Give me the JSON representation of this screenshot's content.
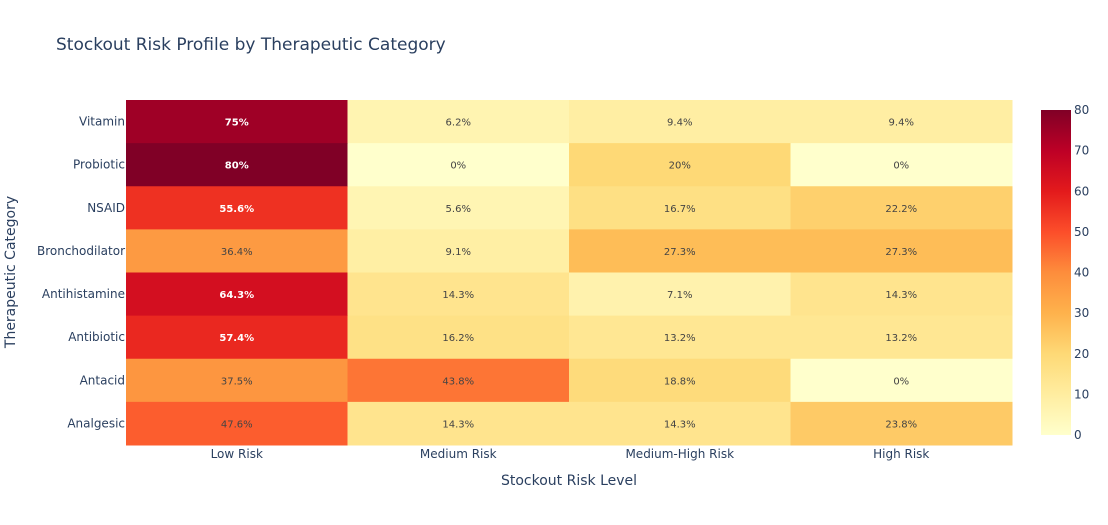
{
  "chart_data": {
    "type": "heatmap",
    "title": "Stockout Risk Profile by Therapeutic Category",
    "xlabel": "Stockout Risk Level",
    "ylabel": "Therapeutic Category",
    "x_categories": [
      "Low Risk",
      "Medium Risk",
      "Medium-High Risk",
      "High Risk"
    ],
    "y_categories": [
      "Vitamin",
      "Probiotic",
      "NSAID",
      "Bronchodilator",
      "Antihistamine",
      "Antibiotic",
      "Antacid",
      "Analgesic"
    ],
    "values": [
      [
        75,
        6.2,
        9.4,
        9.4
      ],
      [
        80,
        0,
        20,
        0
      ],
      [
        55.6,
        5.6,
        16.7,
        22.2
      ],
      [
        36.4,
        9.1,
        27.3,
        27.3
      ],
      [
        64.3,
        14.3,
        7.1,
        14.3
      ],
      [
        57.4,
        16.2,
        13.2,
        13.2
      ],
      [
        37.5,
        43.8,
        18.8,
        0
      ],
      [
        47.6,
        14.3,
        14.3,
        23.8
      ]
    ],
    "text_labels": [
      [
        "75%",
        "6.2%",
        "9.4%",
        "9.4%"
      ],
      [
        "80%",
        "0%",
        "20%",
        "0%"
      ],
      [
        "55.6%",
        "5.6%",
        "16.7%",
        "22.2%"
      ],
      [
        "36.4%",
        "9.1%",
        "27.3%",
        "27.3%"
      ],
      [
        "64.3%",
        "14.3%",
        "7.1%",
        "14.3%"
      ],
      [
        "57.4%",
        "16.2%",
        "13.2%",
        "13.2%"
      ],
      [
        "37.5%",
        "43.8%",
        "18.8%",
        "0%"
      ],
      [
        "47.6%",
        "14.3%",
        "14.3%",
        "23.8%"
      ]
    ],
    "colorscale": "YlOrRd",
    "zrange": [
      0,
      80
    ],
    "colorbar_ticks": [
      "0",
      "10",
      "20",
      "30",
      "40",
      "50",
      "60",
      "70",
      "80"
    ]
  }
}
